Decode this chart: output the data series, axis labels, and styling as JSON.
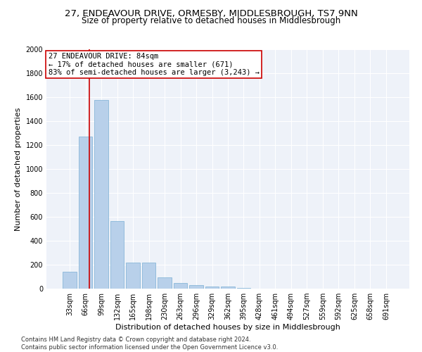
{
  "title1": "27, ENDEAVOUR DRIVE, ORMESBY, MIDDLESBROUGH, TS7 9NN",
  "title2": "Size of property relative to detached houses in Middlesbrough",
  "xlabel": "Distribution of detached houses by size in Middlesbrough",
  "ylabel": "Number of detached properties",
  "categories": [
    "33sqm",
    "66sqm",
    "99sqm",
    "132sqm",
    "165sqm",
    "198sqm",
    "230sqm",
    "263sqm",
    "296sqm",
    "329sqm",
    "362sqm",
    "395sqm",
    "428sqm",
    "461sqm",
    "494sqm",
    "527sqm",
    "559sqm",
    "592sqm",
    "625sqm",
    "658sqm",
    "691sqm"
  ],
  "values": [
    140,
    1270,
    1575,
    565,
    215,
    215,
    95,
    50,
    30,
    15,
    15,
    5,
    0,
    0,
    0,
    0,
    0,
    0,
    0,
    0,
    0
  ],
  "bar_color": "#b8d0ea",
  "bar_edge_color": "#7aafd4",
  "vline_x": 1.25,
  "vline_color": "#cc0000",
  "annotation_text": "27 ENDEAVOUR DRIVE: 84sqm\n← 17% of detached houses are smaller (671)\n83% of semi-detached houses are larger (3,243) →",
  "annotation_box_color": "#cc0000",
  "ylim": [
    0,
    2000
  ],
  "yticks": [
    0,
    200,
    400,
    600,
    800,
    1000,
    1200,
    1400,
    1600,
    1800,
    2000
  ],
  "footnote": "Contains HM Land Registry data © Crown copyright and database right 2024.\nContains public sector information licensed under the Open Government Licence v3.0.",
  "bg_color": "#eef2f9",
  "grid_color": "#ffffff",
  "title_fontsize": 9.5,
  "subtitle_fontsize": 8.5,
  "axis_label_fontsize": 8,
  "tick_fontsize": 7,
  "footnote_fontsize": 6,
  "ann_fontsize": 7.5
}
